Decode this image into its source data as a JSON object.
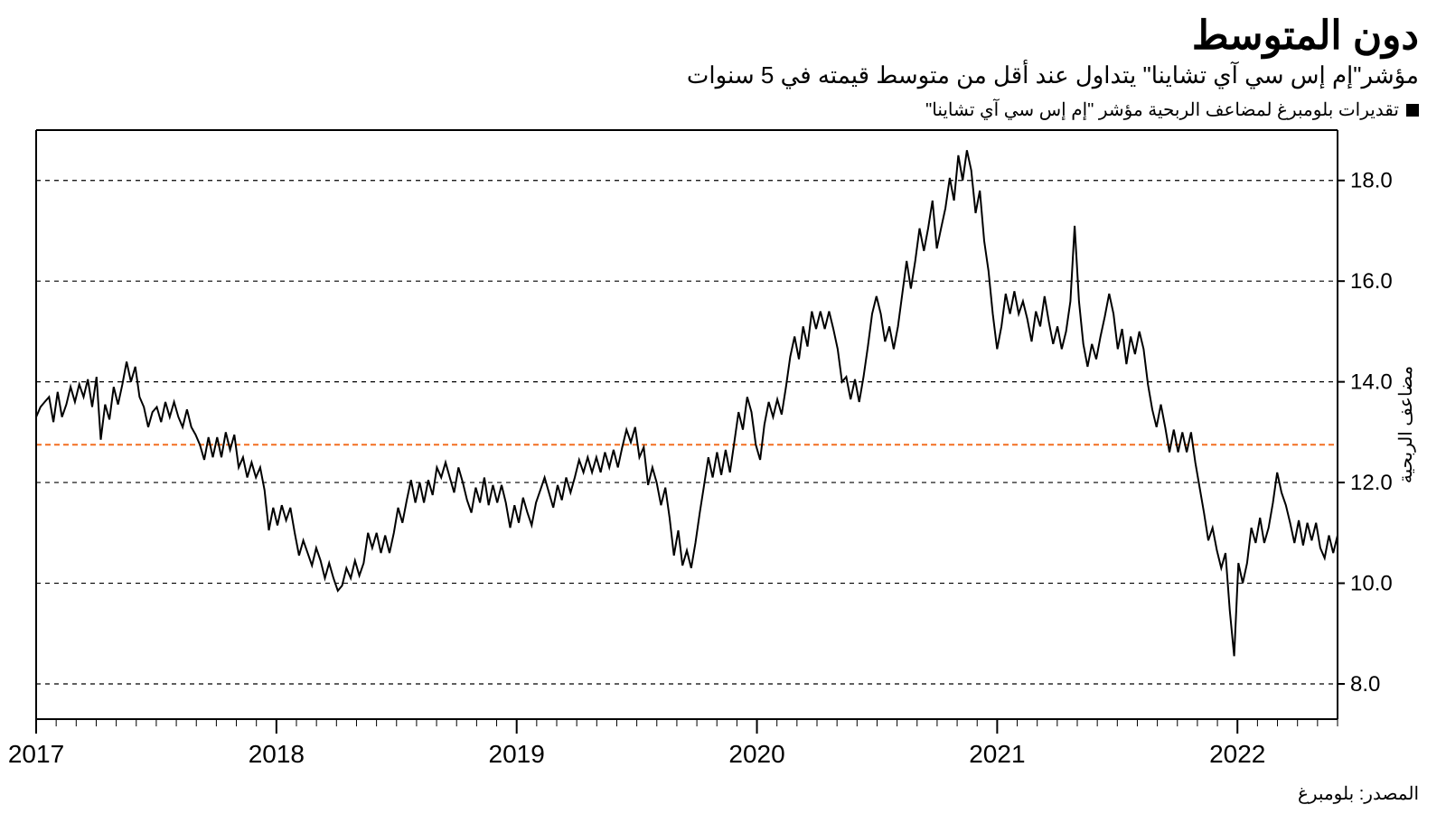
{
  "title": "دون المتوسط",
  "subtitle": "مؤشر\"إم إس سي آي تشاينا\" يتداول عند أقل من متوسط قيمته في 5 سنوات",
  "legend_text": "تقديرات بلومبرغ لمضاعف الربحية مؤشر \"إم إس سي آي تشاينا\"",
  "source": "المصدر: بلومبرغ",
  "chart": {
    "type": "line",
    "background_color": "#ffffff",
    "grid_color": "#000000",
    "grid_dash": "5 5",
    "frame_color": "#000000",
    "line_color": "#000000",
    "line_width": 2,
    "avg_line": {
      "value": 12.75,
      "color": "#f36f21",
      "dash": "6 4",
      "width": 2
    },
    "y_axis": {
      "label": "مضاعف الربحية",
      "ticks": [
        8.0,
        10.0,
        12.0,
        14.0,
        16.0,
        18.0
      ],
      "lim": [
        7.3,
        19.0
      ],
      "fontsize": 24
    },
    "x_axis": {
      "years": [
        2017,
        2018,
        2019,
        2020,
        2021,
        2022
      ],
      "months_per_year": 12,
      "t_start": 0,
      "t_end": 65,
      "fontsize": 28
    },
    "series": [
      13.3,
      13.5,
      13.6,
      13.7,
      13.2,
      13.8,
      13.3,
      13.55,
      13.9,
      13.6,
      13.95,
      13.7,
      14.05,
      13.5,
      14.1,
      12.85,
      13.55,
      13.25,
      13.9,
      13.55,
      13.95,
      14.4,
      14.0,
      14.3,
      13.7,
      13.5,
      13.1,
      13.4,
      13.5,
      13.2,
      13.6,
      13.3,
      13.6,
      13.3,
      13.1,
      13.45,
      13.1,
      12.95,
      12.75,
      12.45,
      12.9,
      12.5,
      12.9,
      12.5,
      13.0,
      12.65,
      12.95,
      12.3,
      12.5,
      12.1,
      12.4,
      12.1,
      12.3,
      11.85,
      11.05,
      11.5,
      11.15,
      11.55,
      11.25,
      11.5,
      11.0,
      10.55,
      10.85,
      10.6,
      10.35,
      10.7,
      10.45,
      10.1,
      10.4,
      10.1,
      9.85,
      9.95,
      10.3,
      10.1,
      10.45,
      10.15,
      10.4,
      11.0,
      10.7,
      11.0,
      10.6,
      10.95,
      10.6,
      11.0,
      11.5,
      11.2,
      11.65,
      12.05,
      11.6,
      12.0,
      11.6,
      12.05,
      11.75,
      12.3,
      12.1,
      12.4,
      12.1,
      11.8,
      12.3,
      12.0,
      11.65,
      11.4,
      11.9,
      11.6,
      12.1,
      11.55,
      11.95,
      11.6,
      11.95,
      11.6,
      11.1,
      11.55,
      11.2,
      11.7,
      11.4,
      11.15,
      11.6,
      11.85,
      12.1,
      11.8,
      11.5,
      11.95,
      11.65,
      12.1,
      11.8,
      12.1,
      12.45,
      12.2,
      12.5,
      12.2,
      12.5,
      12.2,
      12.6,
      12.3,
      12.65,
      12.3,
      12.7,
      13.05,
      12.8,
      13.1,
      12.5,
      12.7,
      11.95,
      12.3,
      12.0,
      11.55,
      11.9,
      11.3,
      10.55,
      11.05,
      10.35,
      10.65,
      10.3,
      10.8,
      11.4,
      11.95,
      12.5,
      12.1,
      12.6,
      12.15,
      12.65,
      12.2,
      12.8,
      13.4,
      13.05,
      13.7,
      13.4,
      12.75,
      12.45,
      13.15,
      13.6,
      13.3,
      13.65,
      13.35,
      13.9,
      14.5,
      14.9,
      14.45,
      15.1,
      14.7,
      15.4,
      15.05,
      15.4,
      15.05,
      15.4,
      15.05,
      14.65,
      14.0,
      14.1,
      13.65,
      14.05,
      13.6,
      14.1,
      14.7,
      15.35,
      15.7,
      15.35,
      14.8,
      15.1,
      14.65,
      15.1,
      15.75,
      16.4,
      15.85,
      16.4,
      17.05,
      16.6,
      17.05,
      17.6,
      16.65,
      17.05,
      17.45,
      18.05,
      17.6,
      18.5,
      18.0,
      18.6,
      18.2,
      17.35,
      17.8,
      16.8,
      16.2,
      15.35,
      14.65,
      15.1,
      15.75,
      15.35,
      15.8,
      15.35,
      15.6,
      15.25,
      14.8,
      15.4,
      15.1,
      15.7,
      15.2,
      14.75,
      15.1,
      14.65,
      15.0,
      15.6,
      17.1,
      15.6,
      14.75,
      14.3,
      14.75,
      14.45,
      14.9,
      15.3,
      15.75,
      15.35,
      14.65,
      15.05,
      14.35,
      14.9,
      14.55,
      15.0,
      14.65,
      13.95,
      13.45,
      13.1,
      13.55,
      13.1,
      12.6,
      13.05,
      12.6,
      13.0,
      12.6,
      13.0,
      12.4,
      11.9,
      11.4,
      10.85,
      11.1,
      10.65,
      10.3,
      10.6,
      9.45,
      8.55,
      10.4,
      10.0,
      10.4,
      11.1,
      10.8,
      11.3,
      10.8,
      11.1,
      11.6,
      12.2,
      11.8,
      11.55,
      11.2,
      10.8,
      11.25,
      10.75,
      11.2,
      10.85,
      11.2,
      10.7,
      10.5,
      10.95,
      10.6,
      10.95
    ]
  }
}
